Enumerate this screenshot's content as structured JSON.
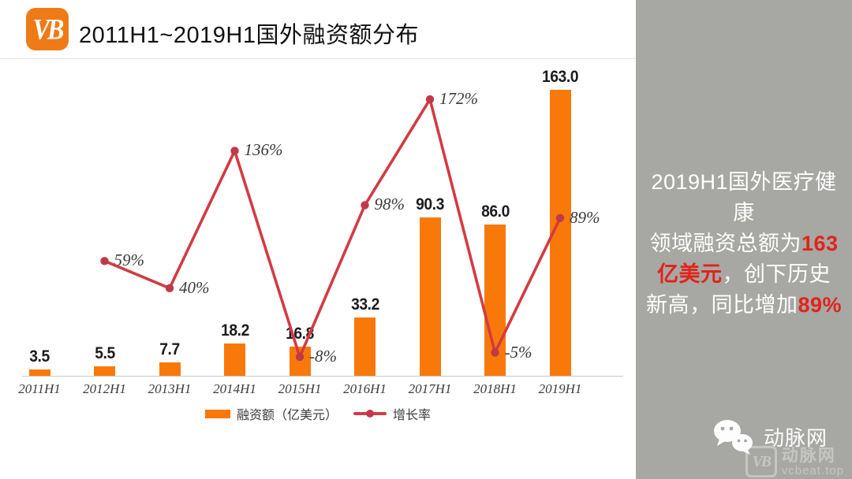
{
  "header": {
    "title": "2011H1~2019H1国外融资额分布",
    "logo_text": "VB",
    "logo_color": "#ee7b17"
  },
  "chart_data": {
    "type": "bar+line",
    "categories": [
      "2011H1",
      "2012H1",
      "2013H1",
      "2014H1",
      "2015H1",
      "2016H1",
      "2017H1",
      "2018H1",
      "2019H1"
    ],
    "series": [
      {
        "name": "融资额（亿美元）",
        "type": "bar",
        "color": "#f8790a",
        "values": [
          3.5,
          5.5,
          7.7,
          18.2,
          16.8,
          33.2,
          90.3,
          86.0,
          163.0
        ],
        "labels": [
          "3.5",
          "5.5",
          "7.7",
          "18.2",
          "16.8",
          "33.2",
          "90.3",
          "86.0",
          "163.0"
        ]
      },
      {
        "name": "增长率",
        "type": "line",
        "color": "#d23b44",
        "marker_color": "#bf3a49",
        "values": [
          null,
          59,
          40,
          136,
          -8,
          98,
          172,
          -5,
          89
        ],
        "labels": [
          "",
          "59%",
          "40%",
          "136%",
          "-8%",
          "98%",
          "172%",
          "-5%",
          "89%"
        ]
      }
    ],
    "legend_position": "bottom",
    "grid": false,
    "xlabel": "",
    "ylabel": ""
  },
  "sidebar": {
    "background": "#a7a7a4",
    "highlight_color": "#e2231a",
    "summary_lines": [
      [
        {
          "text": "2019H1国外医疗健康",
          "hl": false
        }
      ],
      [
        {
          "text": "领域融资总额为",
          "hl": false
        },
        {
          "text": "163",
          "hl": true
        }
      ],
      [
        {
          "text": "亿美元",
          "hl": true
        },
        {
          "text": "，创下历史",
          "hl": false
        }
      ],
      [
        {
          "text": "新高，同比增加",
          "hl": false
        },
        {
          "text": "89%",
          "hl": true
        }
      ]
    ],
    "wechat_label": "动脉网",
    "watermark": {
      "logo_text": "VB",
      "name": "动脉网",
      "domain": "vcbeat.top"
    }
  }
}
